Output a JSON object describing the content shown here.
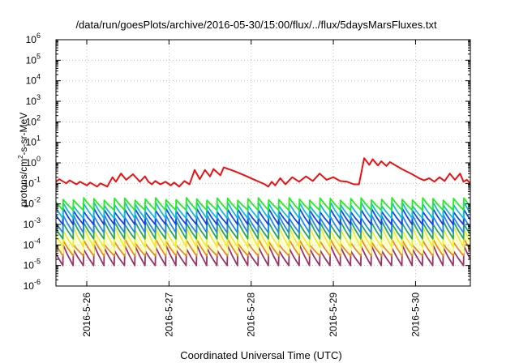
{
  "chart_data": {
    "type": "line",
    "title": "/data/run/goesPlots/archive/2016-05-30/15:00/flux/../flux/5daysMarsFluxes.txt",
    "xlabel": "Coordinated Universal Time (UTC)",
    "ylabel": {
      "pre": "protons/cm",
      "sup": "2",
      "post": "-s-sr-MeV"
    },
    "y_scale": "log",
    "ylim": [
      1e-06,
      1000000.0
    ],
    "y_ticks": [
      {
        "value": 1e-06,
        "base": "10",
        "exp": "-6"
      },
      {
        "value": 1e-05,
        "base": "10",
        "exp": "-5"
      },
      {
        "value": 0.0001,
        "base": "10",
        "exp": "-4"
      },
      {
        "value": 0.001,
        "base": "10",
        "exp": "-3"
      },
      {
        "value": 0.01,
        "base": "10",
        "exp": "-2"
      },
      {
        "value": 0.1,
        "base": "10",
        "exp": "-1"
      },
      {
        "value": 1,
        "base": "10",
        "exp": "0"
      },
      {
        "value": 10,
        "base": "10",
        "exp": "1"
      },
      {
        "value": 100,
        "base": "10",
        "exp": "2"
      },
      {
        "value": 1000,
        "base": "10",
        "exp": "3"
      },
      {
        "value": 10000,
        "base": "10",
        "exp": "4"
      },
      {
        "value": 100000,
        "base": "10",
        "exp": "5"
      },
      {
        "value": 1000000,
        "base": "10",
        "exp": "6"
      }
    ],
    "xlim": [
      "2016-05-25T15:00",
      "2016-05-30T16:00"
    ],
    "x_ticks": [
      {
        "label": "2016-5-26",
        "date": "2016-05-26T00:00"
      },
      {
        "label": "2016-5-27",
        "date": "2016-05-27T00:00"
      },
      {
        "label": "2016-5-28",
        "date": "2016-05-28T00:00"
      },
      {
        "label": "2016-5-29",
        "date": "2016-05-29T00:00"
      },
      {
        "label": "2016-5-30",
        "date": "2016-05-30T00:00"
      }
    ],
    "grid": true,
    "legend": "none",
    "red_series": {
      "color": "#ee1111",
      "points": [
        [
          "2016-05-25T15:00",
          0.12
        ],
        [
          "2016-05-25T16:00",
          0.16
        ],
        [
          "2016-05-25T18:00",
          0.1
        ],
        [
          "2016-05-25T19:00",
          0.14
        ],
        [
          "2016-05-25T21:00",
          0.09
        ],
        [
          "2016-05-25T22:00",
          0.12
        ],
        [
          "2016-05-26T00:00",
          0.08
        ],
        [
          "2016-05-26T01:00",
          0.11
        ],
        [
          "2016-05-26T03:00",
          0.07
        ],
        [
          "2016-05-26T04:00",
          0.1
        ],
        [
          "2016-05-26T06:00",
          0.07
        ],
        [
          "2016-05-26T07:30",
          0.2
        ],
        [
          "2016-05-26T08:30",
          0.12
        ],
        [
          "2016-05-26T10:00",
          0.3
        ],
        [
          "2016-05-26T11:30",
          0.15
        ],
        [
          "2016-05-26T13:30",
          0.28
        ],
        [
          "2016-05-26T15:30",
          0.12
        ],
        [
          "2016-05-26T17:00",
          0.22
        ],
        [
          "2016-05-26T18:00",
          0.12
        ],
        [
          "2016-05-26T19:00",
          0.09
        ],
        [
          "2016-05-26T20:00",
          0.13
        ],
        [
          "2016-05-26T21:30",
          0.09
        ],
        [
          "2016-05-26T23:00",
          0.12
        ],
        [
          "2016-05-27T00:30",
          0.08
        ],
        [
          "2016-05-27T01:30",
          0.11
        ],
        [
          "2016-05-27T03:00",
          0.07
        ],
        [
          "2016-05-27T04:30",
          0.13
        ],
        [
          "2016-05-27T06:00",
          0.09
        ],
        [
          "2016-05-27T07:30",
          0.45
        ],
        [
          "2016-05-27T09:00",
          0.16
        ],
        [
          "2016-05-27T10:30",
          0.45
        ],
        [
          "2016-05-27T12:00",
          0.22
        ],
        [
          "2016-05-27T13:00",
          0.5
        ],
        [
          "2016-05-27T15:00",
          0.25
        ],
        [
          "2016-05-27T16:00",
          0.6
        ],
        [
          "2016-05-27T19:00",
          0.4
        ],
        [
          "2016-05-27T22:00",
          0.25
        ],
        [
          "2016-05-28T01:00",
          0.15
        ],
        [
          "2016-05-28T04:00",
          0.09
        ],
        [
          "2016-05-28T05:00",
          0.07
        ],
        [
          "2016-05-28T06:00",
          0.12
        ],
        [
          "2016-05-28T07:00",
          0.08
        ],
        [
          "2016-05-28T08:30",
          0.18
        ],
        [
          "2016-05-28T10:00",
          0.09
        ],
        [
          "2016-05-28T12:00",
          0.2
        ],
        [
          "2016-05-28T14:00",
          0.12
        ],
        [
          "2016-05-28T16:00",
          0.22
        ],
        [
          "2016-05-28T18:00",
          0.13
        ],
        [
          "2016-05-28T20:00",
          0.3
        ],
        [
          "2016-05-28T22:00",
          0.15
        ],
        [
          "2016-05-29T00:00",
          0.2
        ],
        [
          "2016-05-29T02:00",
          0.13
        ],
        [
          "2016-05-29T04:00",
          0.12
        ],
        [
          "2016-05-29T06:00",
          0.09
        ],
        [
          "2016-05-29T07:30",
          0.09
        ],
        [
          "2016-05-29T09:00",
          1.7
        ],
        [
          "2016-05-29T10:30",
          0.8
        ],
        [
          "2016-05-29T11:30",
          1.5
        ],
        [
          "2016-05-29T13:00",
          0.75
        ],
        [
          "2016-05-29T14:00",
          1.2
        ],
        [
          "2016-05-29T15:30",
          0.7
        ],
        [
          "2016-05-29T16:30",
          1.1
        ],
        [
          "2016-05-29T20:00",
          0.5
        ],
        [
          "2016-05-29T23:00",
          0.28
        ],
        [
          "2016-05-30T01:00",
          0.18
        ],
        [
          "2016-05-30T02:30",
          0.14
        ],
        [
          "2016-05-30T04:00",
          0.18
        ],
        [
          "2016-05-30T05:30",
          0.12
        ],
        [
          "2016-05-30T07:00",
          0.2
        ],
        [
          "2016-05-30T08:30",
          0.13
        ],
        [
          "2016-05-30T10:00",
          0.3
        ],
        [
          "2016-05-30T11:30",
          0.15
        ],
        [
          "2016-05-30T13:00",
          0.3
        ],
        [
          "2016-05-30T14:00",
          0.12
        ],
        [
          "2016-05-30T15:00",
          0.15
        ],
        [
          "2016-05-30T16:00",
          0.1
        ]
      ]
    },
    "periodic_series": {
      "cycle_hours": 3,
      "series": [
        {
          "color": "#22ee22",
          "peak_min": 0.015,
          "peak_max": 0.02,
          "trough": 0.005
        },
        {
          "color": "#11bbdd",
          "peak_min": 0.008,
          "peak_max": 0.012,
          "trough": 0.002
        },
        {
          "color": "#1144ee",
          "peak_min": 0.004,
          "peak_max": 0.006,
          "trough": 0.001
        },
        {
          "color": "#2288ee",
          "peak_min": 0.002,
          "peak_max": 0.003,
          "trough": 0.0004
        },
        {
          "color": "#22aa55",
          "peak_min": 0.001,
          "peak_max": 0.0015,
          "trough": 0.0002
        },
        {
          "color": "#eeee22",
          "peak_min": 0.0005,
          "peak_max": 0.0008,
          "trough": 8e-05
        },
        {
          "color": "#ffff99",
          "peak_min": 0.0002,
          "peak_max": 0.0004,
          "trough": 4e-05
        },
        {
          "color": "#ee8822",
          "peak_min": 0.0001,
          "peak_max": 0.0002,
          "trough": 3e-05
        },
        {
          "color": "#993366",
          "peak_min": 5e-05,
          "peak_max": 0.0001,
          "trough": 1e-05
        }
      ]
    }
  }
}
